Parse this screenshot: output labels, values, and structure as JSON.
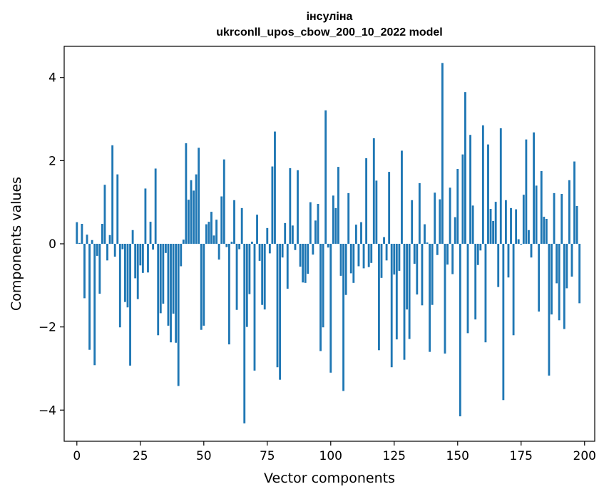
{
  "chart_data": {
    "type": "bar",
    "title": "інсуліна",
    "subtitle": "ukrconll_upos_cbow_200_10_2022 model",
    "xlabel": "Vector components",
    "ylabel": "Components values",
    "xlim": [
      -5,
      204
    ],
    "ylim": [
      -4.75,
      4.75
    ],
    "x_ticks": [
      0,
      25,
      50,
      75,
      100,
      125,
      150,
      175,
      200
    ],
    "x_tick_labels": [
      "0",
      "25",
      "50",
      "75",
      "100",
      "125",
      "150",
      "175",
      "200"
    ],
    "y_ticks": [
      -4,
      -2,
      0,
      2,
      4
    ],
    "y_tick_labels": [
      "−4",
      "−2",
      "0",
      "2",
      "4"
    ],
    "grid": false,
    "bar_color": "#1f77b4",
    "values": [
      0.52,
      0.02,
      0.48,
      -1.31,
      0.22,
      -2.55,
      0.09,
      -2.92,
      -0.29,
      -1.2,
      0.48,
      1.42,
      -0.4,
      0.21,
      2.37,
      -0.31,
      1.67,
      -2.01,
      -0.13,
      -1.4,
      -1.53,
      -2.93,
      0.33,
      -0.83,
      -1.33,
      -0.52,
      -0.7,
      1.33,
      -0.69,
      0.53,
      -0.14,
      1.81,
      -2.2,
      -1.67,
      -1.44,
      -0.22,
      -1.97,
      -2.37,
      -1.68,
      -2.38,
      -3.42,
      -0.54,
      0.1,
      2.42,
      1.06,
      1.53,
      1.28,
      1.67,
      2.31,
      -2.07,
      -1.97,
      0.47,
      0.53,
      0.77,
      0.2,
      0.58,
      -0.38,
      1.14,
      2.03,
      -0.08,
      -2.42,
      0.05,
      1.05,
      -1.59,
      -0.13,
      0.86,
      -4.32,
      -2.0,
      -1.21,
      0.05,
      -3.05,
      0.7,
      -0.41,
      -1.47,
      -1.58,
      0.38,
      -0.23,
      1.86,
      2.7,
      -2.97,
      -3.27,
      -0.33,
      0.5,
      -1.08,
      1.82,
      0.44,
      -0.15,
      1.77,
      -0.55,
      -0.93,
      -0.94,
      -0.72,
      1.0,
      -0.26,
      0.56,
      0.96,
      -2.58,
      -2.01,
      3.21,
      -0.09,
      -3.1,
      1.16,
      0.86,
      1.85,
      -0.77,
      -3.54,
      -1.23,
      1.22,
      -0.71,
      -0.94,
      0.46,
      -0.54,
      0.52,
      -0.59,
      2.06,
      -0.56,
      -0.46,
      2.54,
      1.52,
      -2.56,
      -0.82,
      0.16,
      -0.4,
      1.73,
      -2.97,
      -0.74,
      -2.3,
      -0.65,
      2.24,
      -2.79,
      -1.58,
      -2.29,
      1.05,
      -0.48,
      -1.22,
      1.46,
      -1.48,
      0.47,
      0.03,
      -2.6,
      -1.47,
      1.23,
      -0.27,
      1.07,
      4.35,
      -2.64,
      -0.5,
      1.35,
      -0.73,
      0.64,
      1.8,
      -4.15,
      2.15,
      3.65,
      -2.15,
      2.62,
      0.92,
      -1.82,
      -0.51,
      -0.16,
      2.85,
      -2.37,
      2.39,
      0.84,
      0.55,
      1.01,
      -1.04,
      2.78,
      -3.76,
      1.05,
      -0.81,
      0.86,
      -2.2,
      0.83,
      0.11,
      -0.02,
      1.18,
      2.51,
      0.33,
      -0.33,
      2.68,
      1.4,
      -1.63,
      1.75,
      0.65,
      0.6,
      -3.17,
      -1.7,
      1.22,
      -0.95,
      -1.84,
      1.2,
      -2.05,
      -1.07,
      1.53,
      -0.79,
      1.98,
      0.91,
      -1.43
    ]
  }
}
